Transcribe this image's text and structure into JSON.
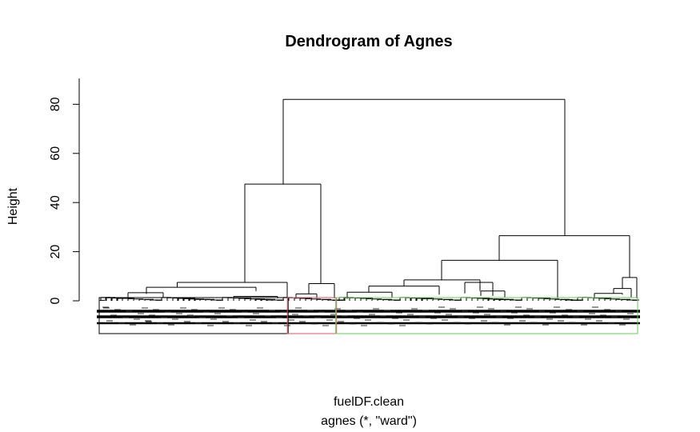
{
  "chart_data": {
    "type": "dendrogram",
    "title": "Dendrogram of Agnes",
    "ylabel": "Height",
    "xlabel": "fuelDF.clean",
    "sub": "agnes (*, \"ward\")",
    "ylim": [
      0,
      85
    ],
    "yticks": [
      0,
      20,
      40,
      60,
      80
    ],
    "leaf_count": 800,
    "merges": [
      {
        "name": "root",
        "height": 82,
        "left_child": "left-cluster",
        "right_child": "right-cluster"
      },
      {
        "name": "left-cluster",
        "height": 47.5
      },
      {
        "name": "right-cluster",
        "height": 26.5
      },
      {
        "name": "right-inner",
        "height": 16.5
      },
      {
        "name": "left-sub-a",
        "height": 7.5
      },
      {
        "name": "left-sub-b",
        "height": 7.0
      },
      {
        "name": "left-sub-a-inner",
        "height": 5.5
      },
      {
        "name": "right-small",
        "height": 9.5
      },
      {
        "name": "right-mid-a",
        "height": 8.5
      },
      {
        "name": "right-mid-b",
        "height": 6.0
      }
    ],
    "cluster_boxes": [
      {
        "name": "cluster-1",
        "color": "#000000",
        "leaf_fraction_start": 0.0,
        "leaf_fraction_end": 0.35
      },
      {
        "name": "cluster-2",
        "color": "#DF536B",
        "leaf_fraction_start": 0.35,
        "leaf_fraction_end": 0.44
      },
      {
        "name": "cluster-3",
        "color": "#61D04F",
        "leaf_fraction_start": 0.44,
        "leaf_fraction_end": 1.0
      }
    ],
    "grid": false
  }
}
